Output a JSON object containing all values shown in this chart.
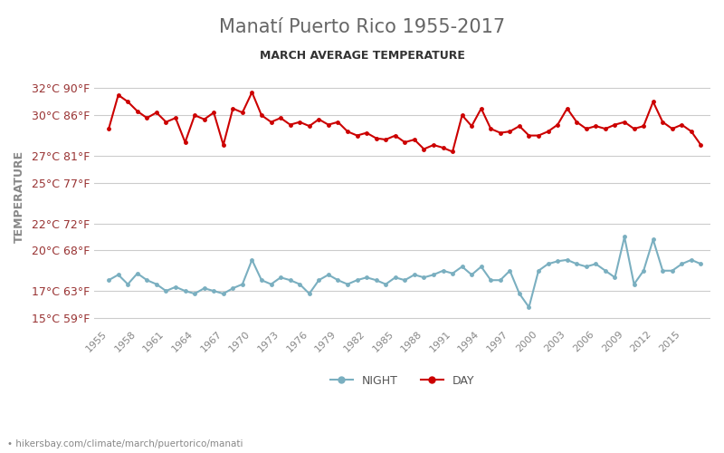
{
  "title": "Manatí Puerto Rico 1955-2017",
  "subtitle": "MARCH AVERAGE TEMPERATURE",
  "ylabel": "TEMPERATURE",
  "xlabel_url": "hikersbay.com/climate/march/puertorico/manati",
  "ylim": [
    14.5,
    33.5
  ],
  "yticks_c": [
    15,
    17,
    20,
    22,
    25,
    27,
    30,
    32
  ],
  "yticks_f": [
    59,
    63,
    68,
    72,
    77,
    81,
    86,
    90
  ],
  "years": [
    1955,
    1956,
    1957,
    1958,
    1959,
    1960,
    1961,
    1962,
    1963,
    1964,
    1965,
    1966,
    1967,
    1968,
    1969,
    1970,
    1971,
    1972,
    1973,
    1974,
    1975,
    1976,
    1977,
    1978,
    1979,
    1980,
    1981,
    1982,
    1983,
    1984,
    1985,
    1986,
    1987,
    1988,
    1989,
    1990,
    1991,
    1992,
    1993,
    1994,
    1995,
    1996,
    1997,
    1998,
    1999,
    2000,
    2001,
    2002,
    2003,
    2004,
    2005,
    2006,
    2007,
    2008,
    2009,
    2010,
    2011,
    2012,
    2013,
    2014,
    2015,
    2016,
    2017
  ],
  "day_temps": [
    29.0,
    31.5,
    31.0,
    30.3,
    29.8,
    30.2,
    29.5,
    29.8,
    28.0,
    30.0,
    29.7,
    30.2,
    27.8,
    30.5,
    30.2,
    31.7,
    30.0,
    29.5,
    29.8,
    29.3,
    29.5,
    29.2,
    29.7,
    29.3,
    29.5,
    28.8,
    28.5,
    28.7,
    28.3,
    28.2,
    28.5,
    28.0,
    28.2,
    27.5,
    27.8,
    27.6,
    27.3,
    30.0,
    29.2,
    30.5,
    29.0,
    28.7,
    28.8,
    29.2,
    28.5,
    28.5,
    28.8,
    29.3,
    30.5,
    29.5,
    29.0,
    29.2,
    29.0,
    29.3,
    29.5,
    29.0,
    29.2,
    31.0,
    29.5,
    29.0,
    29.3,
    28.8,
    27.8
  ],
  "night_temps": [
    17.8,
    18.2,
    17.5,
    18.3,
    17.8,
    17.5,
    17.0,
    17.3,
    17.0,
    16.8,
    17.2,
    17.0,
    16.8,
    17.2,
    17.5,
    19.3,
    17.8,
    17.5,
    18.0,
    17.8,
    17.5,
    16.8,
    17.8,
    18.2,
    17.8,
    17.5,
    17.8,
    18.0,
    17.8,
    17.5,
    18.0,
    17.8,
    18.2,
    18.0,
    18.2,
    18.5,
    18.3,
    18.8,
    18.2,
    18.8,
    17.8,
    17.8,
    18.5,
    16.8,
    15.8,
    18.5,
    19.0,
    19.2,
    19.3,
    19.0,
    18.8,
    19.0,
    18.5,
    18.0,
    21.0,
    17.5,
    18.5,
    20.8,
    18.5,
    18.5,
    19.0,
    19.3,
    19.0
  ],
  "day_color": "#cc0000",
  "night_color": "#7aafc0",
  "background_color": "#ffffff",
  "grid_color": "#cccccc",
  "title_color": "#666666",
  "subtitle_color": "#333333",
  "tick_label_color": "#993333",
  "axis_label_color": "#888888",
  "legend_night": "NIGHT",
  "legend_day": "DAY",
  "xtick_years": [
    1955,
    1958,
    1961,
    1964,
    1967,
    1970,
    1973,
    1976,
    1979,
    1982,
    1985,
    1988,
    1991,
    1994,
    1997,
    2000,
    2003,
    2006,
    2009,
    2012,
    2015
  ]
}
